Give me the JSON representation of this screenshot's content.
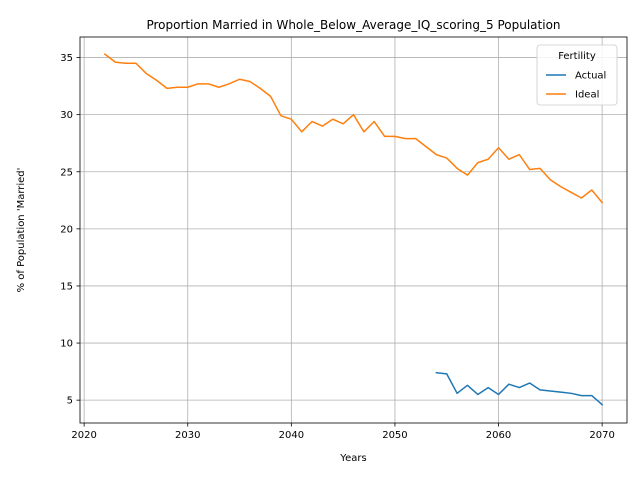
{
  "chart_data": {
    "type": "line",
    "title": "Proportion Married in Whole_Below_Average_IQ_scoring_5 Population",
    "xlabel": "Years",
    "ylabel": "% of Population 'Married'",
    "xlim": [
      2019.6,
      2072.4
    ],
    "ylim": [
      3.0,
      36.8
    ],
    "xticks": [
      2020,
      2030,
      2040,
      2050,
      2060,
      2070
    ],
    "yticks": [
      5,
      10,
      15,
      20,
      25,
      30,
      35
    ],
    "grid": true,
    "legend": {
      "title": "Fertility",
      "placement": "top-right"
    },
    "series": [
      {
        "name": "Actual",
        "color": "#1f77b4",
        "x": [
          2054,
          2055,
          2056,
          2057,
          2058,
          2059,
          2060,
          2061,
          2062,
          2063,
          2064,
          2065,
          2066,
          2067,
          2068,
          2069,
          2070
        ],
        "values": [
          7.4,
          7.3,
          5.6,
          6.3,
          5.5,
          6.1,
          5.5,
          6.4,
          6.1,
          6.5,
          5.9,
          5.8,
          5.7,
          5.6,
          5.4,
          5.4,
          4.6
        ]
      },
      {
        "name": "Ideal",
        "color": "#ff7f0e",
        "x": [
          2022,
          2023,
          2024,
          2025,
          2026,
          2027,
          2028,
          2029,
          2030,
          2031,
          2032,
          2033,
          2034,
          2035,
          2036,
          2037,
          2038,
          2039,
          2040,
          2041,
          2042,
          2043,
          2044,
          2045,
          2046,
          2047,
          2048,
          2049,
          2050,
          2051,
          2052,
          2053,
          2054,
          2055,
          2056,
          2057,
          2058,
          2059,
          2060,
          2061,
          2062,
          2063,
          2064,
          2065,
          2066,
          2067,
          2068,
          2069,
          2070
        ],
        "values": [
          35.3,
          34.6,
          34.5,
          34.5,
          33.6,
          33.0,
          32.3,
          32.4,
          32.4,
          32.7,
          32.7,
          32.4,
          32.7,
          33.1,
          32.9,
          32.3,
          31.6,
          29.9,
          29.6,
          28.5,
          29.4,
          29.0,
          29.6,
          29.2,
          30.0,
          28.5,
          29.4,
          28.1,
          28.1,
          27.9,
          27.9,
          27.2,
          26.5,
          26.2,
          25.3,
          24.7,
          25.8,
          26.1,
          27.1,
          26.1,
          26.5,
          25.2,
          25.3,
          24.3,
          23.7,
          23.2,
          22.7,
          23.4,
          22.3
        ]
      }
    ]
  }
}
